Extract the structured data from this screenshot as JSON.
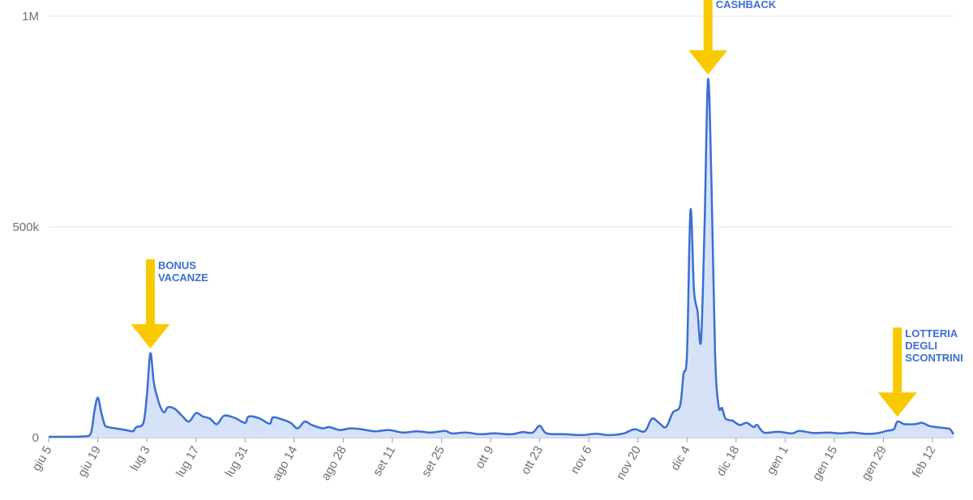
{
  "chart_data": {
    "type": "area",
    "title": "",
    "xlabel": "",
    "ylabel": "",
    "x_start": "2020-06-05",
    "x_end": "2021-02-18",
    "ylim": [
      0,
      1000000
    ],
    "y_ticks": [
      {
        "value": 0,
        "label": "0"
      },
      {
        "value": 500000,
        "label": "500k"
      },
      {
        "value": 1000000,
        "label": "1M"
      }
    ],
    "x_ticks": [
      {
        "date": "2020-06-05",
        "label": "giu 5"
      },
      {
        "date": "2020-06-19",
        "label": "giu 19"
      },
      {
        "date": "2020-07-03",
        "label": "lug 3"
      },
      {
        "date": "2020-07-17",
        "label": "lug 17"
      },
      {
        "date": "2020-07-31",
        "label": "lug 31"
      },
      {
        "date": "2020-08-14",
        "label": "ago 14"
      },
      {
        "date": "2020-08-28",
        "label": "ago 28"
      },
      {
        "date": "2020-09-11",
        "label": "set 11"
      },
      {
        "date": "2020-09-25",
        "label": "set 25"
      },
      {
        "date": "2020-10-09",
        "label": "ott 9"
      },
      {
        "date": "2020-10-23",
        "label": "ott 23"
      },
      {
        "date": "2020-11-06",
        "label": "nov 6"
      },
      {
        "date": "2020-11-20",
        "label": "nov 20"
      },
      {
        "date": "2020-12-04",
        "label": "dic 4"
      },
      {
        "date": "2020-12-18",
        "label": "dic 18"
      },
      {
        "date": "2021-01-01",
        "label": "gen 1"
      },
      {
        "date": "2021-01-15",
        "label": "gen 15"
      },
      {
        "date": "2021-01-29",
        "label": "gen 29"
      },
      {
        "date": "2021-02-12",
        "label": "feb 12"
      }
    ],
    "grid": true,
    "legend": "none",
    "series": [
      {
        "color": "#3b6fd1",
        "fill": "#d6e2f7",
        "points": [
          [
            "2020-06-05",
            2000
          ],
          [
            "2020-06-10",
            2000
          ],
          [
            "2020-06-15",
            3000
          ],
          [
            "2020-06-17",
            10000
          ],
          [
            "2020-06-18",
            60000
          ],
          [
            "2020-06-19",
            95000
          ],
          [
            "2020-06-20",
            60000
          ],
          [
            "2020-06-21",
            30000
          ],
          [
            "2020-06-22",
            25000
          ],
          [
            "2020-06-24",
            22000
          ],
          [
            "2020-06-27",
            18000
          ],
          [
            "2020-06-29",
            15000
          ],
          [
            "2020-06-30",
            25000
          ],
          [
            "2020-07-02",
            35000
          ],
          [
            "2020-07-03",
            100000
          ],
          [
            "2020-07-04",
            200000
          ],
          [
            "2020-07-05",
            130000
          ],
          [
            "2020-07-06",
            95000
          ],
          [
            "2020-07-07",
            70000
          ],
          [
            "2020-07-08",
            60000
          ],
          [
            "2020-07-09",
            72000
          ],
          [
            "2020-07-11",
            68000
          ],
          [
            "2020-07-13",
            52000
          ],
          [
            "2020-07-15",
            38000
          ],
          [
            "2020-07-17",
            58000
          ],
          [
            "2020-07-19",
            50000
          ],
          [
            "2020-07-21",
            45000
          ],
          [
            "2020-07-23",
            32000
          ],
          [
            "2020-07-25",
            52000
          ],
          [
            "2020-07-28",
            47000
          ],
          [
            "2020-07-31",
            35000
          ],
          [
            "2020-08-01",
            50000
          ],
          [
            "2020-08-04",
            46000
          ],
          [
            "2020-08-07",
            33000
          ],
          [
            "2020-08-08",
            48000
          ],
          [
            "2020-08-11",
            42000
          ],
          [
            "2020-08-13",
            35000
          ],
          [
            "2020-08-15",
            22000
          ],
          [
            "2020-08-17",
            38000
          ],
          [
            "2020-08-19",
            30000
          ],
          [
            "2020-08-22",
            22000
          ],
          [
            "2020-08-24",
            25000
          ],
          [
            "2020-08-27",
            18000
          ],
          [
            "2020-08-30",
            22000
          ],
          [
            "2020-09-02",
            20000
          ],
          [
            "2020-09-06",
            15000
          ],
          [
            "2020-09-10",
            18000
          ],
          [
            "2020-09-14",
            12000
          ],
          [
            "2020-09-18",
            15000
          ],
          [
            "2020-09-22",
            12000
          ],
          [
            "2020-09-26",
            16000
          ],
          [
            "2020-09-28",
            10000
          ],
          [
            "2020-10-02",
            12000
          ],
          [
            "2020-10-06",
            8000
          ],
          [
            "2020-10-10",
            10000
          ],
          [
            "2020-10-15",
            8000
          ],
          [
            "2020-10-18",
            13000
          ],
          [
            "2020-10-21",
            12000
          ],
          [
            "2020-10-23",
            28000
          ],
          [
            "2020-10-25",
            10000
          ],
          [
            "2020-10-30",
            8000
          ],
          [
            "2020-11-04",
            6000
          ],
          [
            "2020-11-08",
            9000
          ],
          [
            "2020-11-12",
            6000
          ],
          [
            "2020-11-16",
            10000
          ],
          [
            "2020-11-19",
            20000
          ],
          [
            "2020-11-22",
            15000
          ],
          [
            "2020-11-24",
            45000
          ],
          [
            "2020-11-26",
            35000
          ],
          [
            "2020-11-28",
            25000
          ],
          [
            "2020-11-30",
            60000
          ],
          [
            "2020-12-02",
            75000
          ],
          [
            "2020-12-03",
            150000
          ],
          [
            "2020-12-04",
            200000
          ],
          [
            "2020-12-05",
            540000
          ],
          [
            "2020-12-06",
            350000
          ],
          [
            "2020-12-07",
            300000
          ],
          [
            "2020-12-08",
            230000
          ],
          [
            "2020-12-09",
            500000
          ],
          [
            "2020-12-10",
            850000
          ],
          [
            "2020-12-11",
            600000
          ],
          [
            "2020-12-12",
            200000
          ],
          [
            "2020-12-13",
            75000
          ],
          [
            "2020-12-14",
            70000
          ],
          [
            "2020-12-15",
            45000
          ],
          [
            "2020-12-17",
            40000
          ],
          [
            "2020-12-19",
            30000
          ],
          [
            "2020-12-21",
            35000
          ],
          [
            "2020-12-23",
            25000
          ],
          [
            "2020-12-24",
            30000
          ],
          [
            "2020-12-26",
            12000
          ],
          [
            "2020-12-30",
            14000
          ],
          [
            "2021-01-03",
            10000
          ],
          [
            "2021-01-05",
            16000
          ],
          [
            "2021-01-09",
            11000
          ],
          [
            "2021-01-13",
            12000
          ],
          [
            "2021-01-17",
            10000
          ],
          [
            "2021-01-20",
            12000
          ],
          [
            "2021-01-24",
            9000
          ],
          [
            "2021-01-27",
            10000
          ],
          [
            "2021-01-30",
            16000
          ],
          [
            "2021-02-01",
            20000
          ],
          [
            "2021-02-02",
            38000
          ],
          [
            "2021-02-04",
            32000
          ],
          [
            "2021-02-07",
            32000
          ],
          [
            "2021-02-09",
            35000
          ],
          [
            "2021-02-11",
            28000
          ],
          [
            "2021-02-13",
            25000
          ],
          [
            "2021-02-16",
            22000
          ],
          [
            "2021-02-17",
            20000
          ],
          [
            "2021-02-18",
            8000
          ]
        ]
      }
    ],
    "annotations": [
      {
        "lines": [
          "BONUS",
          "VACANZE"
        ],
        "date": "2020-07-04",
        "color": "#f9c900"
      },
      {
        "lines": [
          "CASHBACK"
        ],
        "date": "2020-12-10",
        "color": "#f9c900"
      },
      {
        "lines": [
          "LOTTERIA",
          "DEGLI",
          "SCONTRINI"
        ],
        "date": "2021-02-02",
        "color": "#f9c900"
      }
    ]
  }
}
